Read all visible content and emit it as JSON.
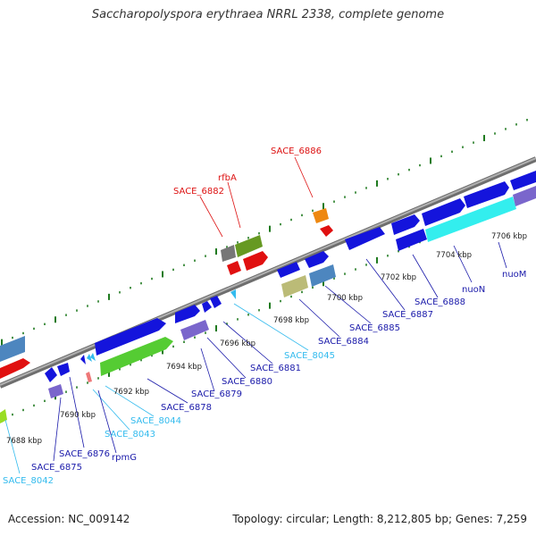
{
  "title": "Saccharopolyspora erythraea NRRL 2338, complete genome",
  "footer": {
    "accession": "Accession: NC_009142",
    "summary": "Topology: circular; Length: 8,212,805 bp; Genes: 7,259"
  },
  "colors": {
    "backbone": "#8a8a8a",
    "tick": "#1f7a1f",
    "label_red": "#dd1111",
    "label_blue": "#1a1aaa",
    "label_cyan": "#33bbee"
  },
  "kbp_labels": [
    "7688 kbp",
    "7690 kbp",
    "7692 kbp",
    "7694 kbp",
    "7696 kbp",
    "7698 kbp",
    "7700 kbp",
    "7702 kbp",
    "7704 kbp",
    "7706 kbp"
  ],
  "gene_labels": [
    {
      "text": "SACE_6886",
      "color": "red"
    },
    {
      "text": "rfbA",
      "color": "red"
    },
    {
      "text": "SACE_6882",
      "color": "red"
    },
    {
      "text": "nuoM",
      "color": "blue"
    },
    {
      "text": "nuoN",
      "color": "blue"
    },
    {
      "text": "SACE_6888",
      "color": "blue"
    },
    {
      "text": "SACE_6887",
      "color": "blue"
    },
    {
      "text": "SACE_6885",
      "color": "blue"
    },
    {
      "text": "SACE_6884",
      "color": "blue"
    },
    {
      "text": "SACE_8045",
      "color": "cyan"
    },
    {
      "text": "SACE_6881",
      "color": "blue"
    },
    {
      "text": "SACE_6880",
      "color": "blue"
    },
    {
      "text": "SACE_6879",
      "color": "blue"
    },
    {
      "text": "SACE_6878",
      "color": "blue"
    },
    {
      "text": "SACE_8044",
      "color": "cyan"
    },
    {
      "text": "SACE_8043",
      "color": "cyan"
    },
    {
      "text": "rpmG",
      "color": "blue"
    },
    {
      "text": "SACE_6876",
      "color": "blue"
    },
    {
      "text": "SACE_6875",
      "color": "blue"
    },
    {
      "text": "SACE_8042",
      "color": "cyan"
    }
  ]
}
